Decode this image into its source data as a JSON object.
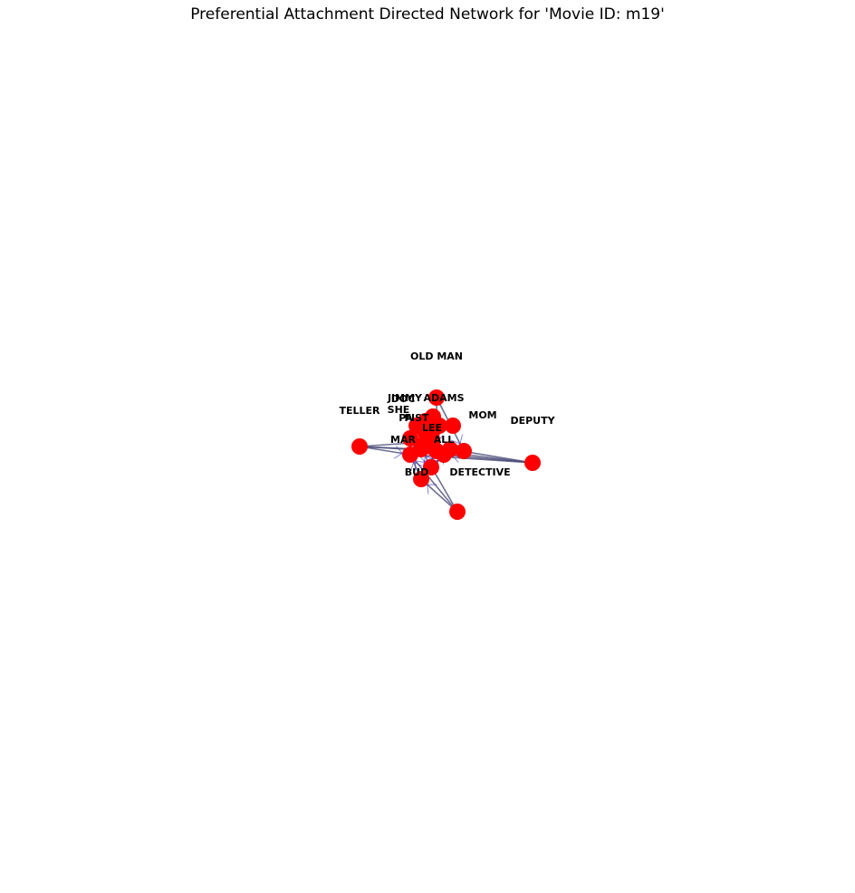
{
  "title": "Preferential Attachment Directed Network for 'Movie ID: m19'",
  "colors": {
    "node": "#ff0000",
    "edge": "#4b4b78",
    "arrow": "#3333cc",
    "label": "#000000"
  },
  "nodes": [
    {
      "id": "n_oldman",
      "label": "OLD MAN"
    },
    {
      "id": "n_teller",
      "label": "TELLER"
    },
    {
      "id": "n_deputy",
      "label": "DEPUTY"
    },
    {
      "id": "n_jimmy",
      "label": "JIMMY"
    },
    {
      "id": "n_doc",
      "label": "DOC"
    },
    {
      "id": "n_adams",
      "label": "ADAMS"
    },
    {
      "id": "n_she",
      "label": "SHE"
    },
    {
      "id": "n_pa",
      "label": "PA"
    },
    {
      "id": "n_fist",
      "label": "FIST"
    },
    {
      "id": "n_mom",
      "label": "MOM"
    },
    {
      "id": "n_mar",
      "label": "MAR"
    },
    {
      "id": "n_all",
      "label": "ALL"
    },
    {
      "id": "n_lee",
      "label": "LEE"
    },
    {
      "id": "n_bud",
      "label": "BUD"
    },
    {
      "id": "n_detective",
      "label": "DETECTIVE"
    },
    {
      "id": "n_bottom",
      "label": ""
    },
    {
      "id": "n_c1",
      "label": ""
    },
    {
      "id": "n_c2",
      "label": ""
    },
    {
      "id": "n_c3",
      "label": ""
    },
    {
      "id": "n_c4",
      "label": ""
    },
    {
      "id": "n_c5",
      "label": ""
    },
    {
      "id": "n_c6",
      "label": ""
    },
    {
      "id": "n_c7",
      "label": ""
    }
  ],
  "edges": [
    [
      "n_teller",
      "n_c1"
    ],
    [
      "n_teller",
      "n_c3"
    ],
    [
      "n_teller",
      "n_c5"
    ],
    [
      "n_teller",
      "n_c7"
    ],
    [
      "n_deputy",
      "n_c2"
    ],
    [
      "n_deputy",
      "n_c4"
    ],
    [
      "n_deputy",
      "n_c6"
    ],
    [
      "n_deputy",
      "n_c1"
    ],
    [
      "n_oldman",
      "n_c3"
    ],
    [
      "n_oldman",
      "n_c5"
    ],
    [
      "n_bottom",
      "n_c1"
    ],
    [
      "n_bottom",
      "n_c2"
    ],
    [
      "n_bottom",
      "n_bud"
    ],
    [
      "n_bud",
      "n_c1"
    ],
    [
      "n_bud",
      "n_c3"
    ],
    [
      "n_detective",
      "n_c4"
    ],
    [
      "n_detective",
      "n_c6"
    ],
    [
      "n_c1",
      "n_c2"
    ],
    [
      "n_c2",
      "n_c3"
    ],
    [
      "n_c3",
      "n_c4"
    ],
    [
      "n_c4",
      "n_c5"
    ],
    [
      "n_c5",
      "n_c6"
    ],
    [
      "n_c6",
      "n_c7"
    ],
    [
      "n_c7",
      "n_c1"
    ],
    [
      "n_c1",
      "n_c4"
    ],
    [
      "n_c2",
      "n_c6"
    ],
    [
      "n_lee",
      "n_c3"
    ],
    [
      "n_all",
      "n_c5"
    ],
    [
      "n_mar",
      "n_c1"
    ]
  ]
}
